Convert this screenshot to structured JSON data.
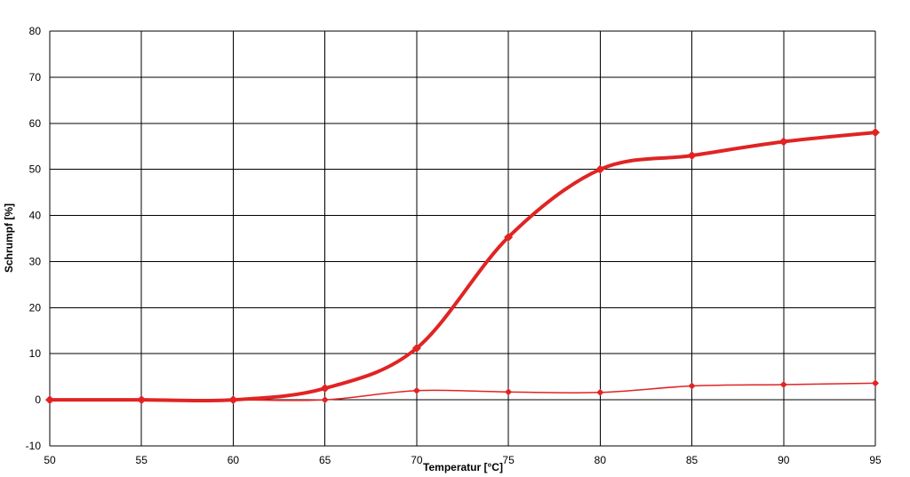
{
  "chart_data": {
    "type": "line",
    "title": "",
    "xlabel": "Temperatur [°C]",
    "ylabel": "Schrumpf [%]",
    "xlim": [
      50,
      95
    ],
    "ylim": [
      -10,
      80
    ],
    "x_ticks": [
      50,
      55,
      60,
      65,
      70,
      75,
      80,
      85,
      90,
      95
    ],
    "y_ticks": [
      -10,
      0,
      10,
      20,
      30,
      40,
      50,
      60,
      70,
      80
    ],
    "grid": true,
    "legend": "none",
    "x": [
      50,
      55,
      60,
      65,
      70,
      75,
      80,
      85,
      90,
      95
    ],
    "series": [
      {
        "values": [
          0,
          0,
          0,
          2.5,
          11.2,
          35.3,
          50,
          53,
          56,
          58
        ],
        "color": "#e02424",
        "line": "thick",
        "marker": "diamond"
      },
      {
        "values": [
          0,
          0,
          0,
          0,
          2,
          1.7,
          1.6,
          3,
          3.3,
          3.6
        ],
        "color": "#e02424",
        "line": "thin",
        "marker": "diamond"
      }
    ]
  }
}
